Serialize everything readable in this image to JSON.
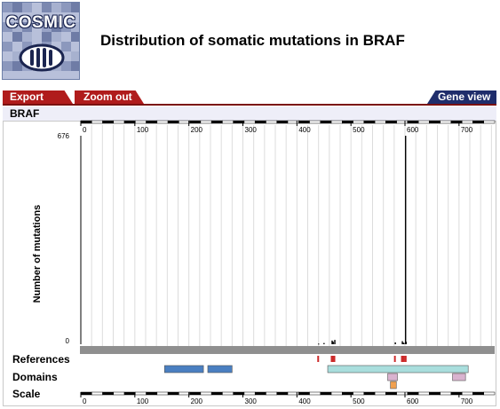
{
  "logo": {
    "text": "COSMIC",
    "icon": "cosmic-chromosome-icon"
  },
  "title": "Distribution of somatic mutations in BRAF",
  "tabs": {
    "export": "Export",
    "zoom_out": "Zoom out",
    "gene_view": "Gene view"
  },
  "gene_name": "BRAF",
  "track_labels": {
    "references": "References",
    "domains": "Domains",
    "scale": "Scale"
  },
  "colors": {
    "tab_red": "#b01c1c",
    "tab_blue": "#1f2d6b",
    "domain_blue": "#4a7fc1",
    "domain_teal": "#a9dedd",
    "domain_mauve": "#d9b3cf",
    "domain_orange": "#f0a050",
    "reference_red": "#cc2a2a"
  },
  "chart_data": {
    "type": "bar",
    "title": "",
    "xlabel": "",
    "ylabel": "Number of mutations",
    "xlim": [
      0,
      766
    ],
    "ylim": [
      0,
      676
    ],
    "x_ticks": [
      0,
      100,
      200,
      300,
      400,
      500,
      600,
      700
    ],
    "y_ticks": [
      0,
      676
    ],
    "grid": true,
    "bars": [
      {
        "x": 439,
        "y": 2
      },
      {
        "x": 449,
        "y": 4
      },
      {
        "x": 464,
        "y": 12
      },
      {
        "x": 466,
        "y": 8
      },
      {
        "x": 469,
        "y": 14
      },
      {
        "x": 581,
        "y": 6
      },
      {
        "x": 594,
        "y": 10
      },
      {
        "x": 596,
        "y": 5
      },
      {
        "x": 597,
        "y": 4
      },
      {
        "x": 600,
        "y": 676
      },
      {
        "x": 601,
        "y": 8
      }
    ],
    "references": [
      439,
      464,
      466,
      469,
      581,
      594,
      597,
      600,
      601
    ],
    "domains": [
      {
        "start": 155,
        "end": 227,
        "color": "#4a7fc1",
        "lane": 0
      },
      {
        "start": 235,
        "end": 280,
        "color": "#4a7fc1",
        "lane": 0
      },
      {
        "start": 457,
        "end": 717,
        "color": "#a9dedd",
        "lane": 0
      },
      {
        "start": 568,
        "end": 586,
        "color": "#d9b3cf",
        "lane": 1
      },
      {
        "start": 688,
        "end": 712,
        "color": "#d9b3cf",
        "lane": 1
      },
      {
        "start": 573,
        "end": 584,
        "color": "#f0a050",
        "lane": 2
      }
    ]
  }
}
